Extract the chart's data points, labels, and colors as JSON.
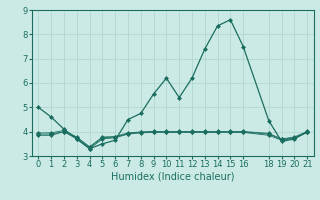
{
  "xlabel": "Humidex (Indice chaleur)",
  "ylabel": "",
  "background_color": "#cceae5",
  "grid_color": "#b0d8d0",
  "line_color": "#1a6e60",
  "marker_color": "#1a6e60",
  "x_values": [
    0,
    1,
    2,
    3,
    4,
    5,
    6,
    7,
    8,
    9,
    10,
    11,
    12,
    13,
    14,
    15,
    16,
    18,
    19,
    20,
    21
  ],
  "series1": [
    5.0,
    4.6,
    4.1,
    3.7,
    3.3,
    3.5,
    3.65,
    4.5,
    4.75,
    5.55,
    6.2,
    5.4,
    6.2,
    7.4,
    8.35,
    8.6,
    7.5,
    4.45,
    3.6,
    3.7,
    4.0
  ],
  "series2": [
    3.85,
    3.85,
    4.0,
    3.7,
    3.3,
    3.7,
    3.75,
    3.9,
    3.95,
    3.97,
    3.97,
    3.97,
    3.97,
    3.97,
    3.97,
    3.97,
    3.97,
    3.85,
    3.65,
    3.72,
    3.97
  ],
  "series3": [
    3.9,
    3.9,
    4.0,
    3.75,
    3.35,
    3.75,
    3.78,
    3.92,
    3.97,
    3.99,
    3.99,
    3.99,
    3.99,
    3.99,
    3.99,
    3.99,
    3.99,
    3.9,
    3.68,
    3.75,
    3.99
  ],
  "series4": [
    3.95,
    3.95,
    4.05,
    3.78,
    3.38,
    3.78,
    3.8,
    3.95,
    3.99,
    4.01,
    4.01,
    4.01,
    4.01,
    4.01,
    4.01,
    4.01,
    4.01,
    3.93,
    3.7,
    3.78,
    4.01
  ],
  "ylim": [
    3.0,
    9.0
  ],
  "xlim": [
    -0.5,
    21.5
  ],
  "xticks": [
    0,
    1,
    2,
    3,
    4,
    5,
    6,
    7,
    8,
    9,
    10,
    11,
    12,
    13,
    14,
    15,
    16,
    18,
    19,
    20,
    21
  ],
  "yticks": [
    3,
    4,
    5,
    6,
    7,
    8,
    9
  ],
  "label_fontsize": 7,
  "tick_fontsize": 6
}
